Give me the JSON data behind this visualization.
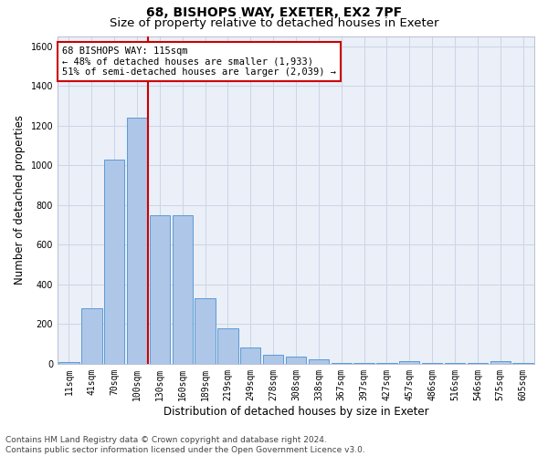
{
  "title_line1": "68, BISHOPS WAY, EXETER, EX2 7PF",
  "title_line2": "Size of property relative to detached houses in Exeter",
  "xlabel": "Distribution of detached houses by size in Exeter",
  "ylabel": "Number of detached properties",
  "categories": [
    "11sqm",
    "41sqm",
    "70sqm",
    "100sqm",
    "130sqm",
    "160sqm",
    "189sqm",
    "219sqm",
    "249sqm",
    "278sqm",
    "308sqm",
    "338sqm",
    "367sqm",
    "397sqm",
    "427sqm",
    "457sqm",
    "486sqm",
    "516sqm",
    "546sqm",
    "575sqm",
    "605sqm"
  ],
  "values": [
    10,
    280,
    1030,
    1240,
    750,
    750,
    330,
    180,
    80,
    45,
    35,
    20,
    5,
    5,
    5,
    15,
    5,
    5,
    5,
    15,
    5
  ],
  "bar_color": "#aec6e8",
  "bar_edgecolor": "#5b9bd5",
  "vline_color": "#cc0000",
  "vline_position": 3.5,
  "annotation_text": "68 BISHOPS WAY: 115sqm\n← 48% of detached houses are smaller (1,933)\n51% of semi-detached houses are larger (2,039) →",
  "annotation_box_facecolor": "#ffffff",
  "annotation_box_edgecolor": "#cc0000",
  "ylim": [
    0,
    1650
  ],
  "yticks": [
    0,
    200,
    400,
    600,
    800,
    1000,
    1200,
    1400,
    1600
  ],
  "grid_color": "#cdd5e5",
  "bg_color": "#eaeff8",
  "footer_line1": "Contains HM Land Registry data © Crown copyright and database right 2024.",
  "footer_line2": "Contains public sector information licensed under the Open Government Licence v3.0.",
  "title_fontsize": 10,
  "subtitle_fontsize": 9.5,
  "axis_label_fontsize": 8.5,
  "tick_fontsize": 7,
  "annotation_fontsize": 7.5,
  "footer_fontsize": 6.5
}
